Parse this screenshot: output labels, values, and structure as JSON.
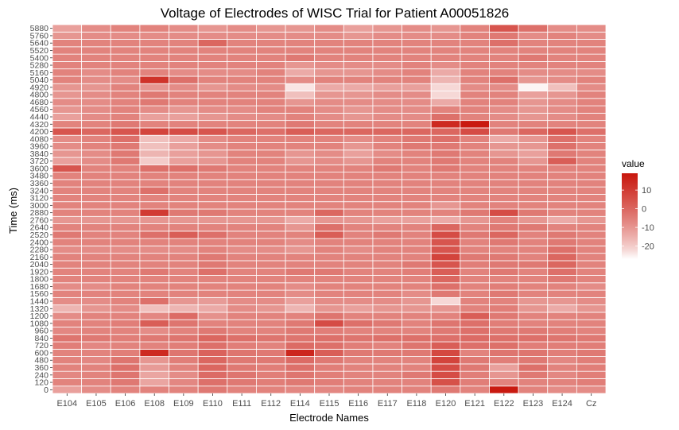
{
  "chart_data": {
    "type": "heatmap",
    "title": "Voltage of Electrodes of WISC Trial for Patient A00051826",
    "xlabel": "Electrode Names",
    "ylabel": "Time (ms)",
    "x_categories": [
      "E104",
      "E105",
      "E106",
      "E108",
      "E109",
      "E110",
      "E111",
      "E112",
      "E114",
      "E115",
      "E116",
      "E117",
      "E118",
      "E120",
      "E121",
      "E122",
      "E123",
      "E124",
      "Cz"
    ],
    "y_categories": [
      0,
      120,
      240,
      360,
      480,
      600,
      720,
      840,
      960,
      1080,
      1200,
      1320,
      1440,
      1560,
      1680,
      1800,
      1920,
      2040,
      2160,
      2280,
      2400,
      2520,
      2640,
      2760,
      2880,
      3000,
      3120,
      3240,
      3360,
      3480,
      3600,
      3720,
      3840,
      3960,
      4080,
      4200,
      4320,
      4440,
      4560,
      4680,
      4800,
      4920,
      5040,
      5160,
      5280,
      5400,
      5520,
      5640,
      5760,
      5880
    ],
    "value_range": [
      -27,
      19
    ],
    "legend": {
      "title": "value",
      "ticks": [
        "10",
        "0",
        "-10",
        "-20"
      ],
      "tick_values": [
        10,
        0,
        -10,
        -20
      ],
      "position": "right"
    },
    "colors": {
      "low": "#ffffff",
      "high": "#c8160c",
      "grid": "#ffffff"
    },
    "values": [
      [
        -12,
        -8,
        -6,
        -6,
        -6,
        -4,
        -6,
        -6,
        -7,
        -7,
        -6,
        -6,
        -6,
        -4,
        -6,
        18,
        -6,
        -8,
        -8
      ],
      [
        -6,
        -6,
        -4,
        -13,
        -7,
        -2,
        -4,
        -5,
        -4,
        -5,
        -6,
        -6,
        -6,
        5,
        -5,
        -6,
        -6,
        -6,
        -5
      ],
      [
        -7,
        -6,
        -3,
        -13,
        -8,
        -1,
        -3,
        -5,
        -3,
        -5,
        -6,
        -6,
        -4,
        6,
        -5,
        -10,
        -4,
        -7,
        -5
      ],
      [
        -6,
        -6,
        -2,
        -11,
        -6,
        0,
        -4,
        -5,
        -2,
        -5,
        -6,
        -6,
        -6,
        6,
        -4,
        -12,
        -2,
        -6,
        -5
      ],
      [
        -6,
        -7,
        -3,
        -10,
        -5,
        0,
        -4,
        -4,
        -1,
        -4,
        -6,
        -6,
        -6,
        8,
        -4,
        -5,
        -4,
        -7,
        -5
      ],
      [
        -6,
        -6,
        -5,
        14,
        -3,
        1,
        -3,
        -4,
        15,
        2,
        -4,
        -4,
        -4,
        7,
        -6,
        -3,
        -3,
        -5,
        -4
      ],
      [
        -5,
        -7,
        -6,
        -6,
        -5,
        -2,
        -5,
        -6,
        -1,
        -2,
        -5,
        -6,
        -3,
        2,
        -2,
        -2,
        -5,
        -5,
        -5
      ],
      [
        -3,
        -4,
        -5,
        -4,
        -3,
        0,
        -2,
        -3,
        -3,
        -2,
        -3,
        -2,
        -2,
        -2,
        -1,
        -2,
        -2,
        -3,
        -4
      ],
      [
        -7,
        -6,
        -6,
        -8,
        -6,
        -4,
        -6,
        -6,
        -4,
        -5,
        -6,
        -6,
        -6,
        -4,
        -2,
        -4,
        -4,
        -5,
        -6
      ],
      [
        -6,
        -6,
        -5,
        2,
        -3,
        -6,
        -6,
        -6,
        -4,
        6,
        -2,
        -4,
        -6,
        -3,
        -2,
        -5,
        -6,
        -6,
        -6
      ],
      [
        -8,
        -6,
        -6,
        -7,
        -1,
        -9,
        -6,
        -6,
        -6,
        -3,
        -6,
        -6,
        -6,
        -6,
        2,
        -4,
        -6,
        -6,
        -6
      ],
      [
        -16,
        -10,
        -8,
        -18,
        -16,
        -14,
        -8,
        -10,
        -16,
        -10,
        -12,
        -10,
        -10,
        -10,
        -6,
        -5,
        -10,
        -14,
        -10
      ],
      [
        -8,
        -8,
        -6,
        -2,
        -10,
        -11,
        -8,
        -8,
        -12,
        -8,
        -8,
        -8,
        -10,
        -22,
        -6,
        -6,
        -10,
        -10,
        -8
      ],
      [
        -6,
        -6,
        -6,
        -6,
        -6,
        -6,
        -6,
        -6,
        -8,
        -6,
        -6,
        -6,
        -8,
        -4,
        -6,
        -4,
        -6,
        -6,
        -6
      ],
      [
        -8,
        -8,
        -6,
        -6,
        -6,
        -6,
        -6,
        -6,
        -8,
        -6,
        -6,
        -6,
        -6,
        -2,
        -6,
        -5,
        -6,
        -6,
        -8
      ],
      [
        -6,
        -6,
        -6,
        -6,
        -6,
        -6,
        -6,
        -6,
        -6,
        -6,
        -6,
        -6,
        -6,
        0,
        -6,
        -6,
        -6,
        -4,
        -6
      ],
      [
        -6,
        -6,
        -6,
        -4,
        -6,
        -2,
        -6,
        -6,
        -4,
        -4,
        -6,
        -6,
        -5,
        2,
        -6,
        -4,
        -6,
        -2,
        -6
      ],
      [
        -6,
        -6,
        -6,
        -6,
        -6,
        -4,
        -6,
        -6,
        -6,
        -6,
        -6,
        -6,
        -4,
        4,
        -5,
        -4,
        -4,
        0,
        -6
      ],
      [
        -6,
        -6,
        -6,
        -6,
        -6,
        -4,
        -6,
        -6,
        -6,
        -6,
        -6,
        -6,
        -6,
        8,
        -4,
        -4,
        -6,
        0,
        -6
      ],
      [
        -8,
        -8,
        -8,
        -8,
        -8,
        -6,
        -8,
        -8,
        -10,
        -6,
        -8,
        -6,
        -6,
        4,
        -6,
        -6,
        -6,
        -2,
        -6
      ],
      [
        -6,
        -6,
        -6,
        -6,
        -6,
        -6,
        -6,
        -6,
        -8,
        -6,
        -6,
        -6,
        -6,
        4,
        -6,
        -4,
        -6,
        -4,
        -6
      ],
      [
        -4,
        -6,
        -6,
        -2,
        2,
        -2,
        -6,
        -6,
        -6,
        2,
        -6,
        -4,
        -6,
        6,
        -4,
        0,
        -6,
        -4,
        -6
      ],
      [
        -6,
        -6,
        -6,
        -6,
        -6,
        -6,
        -6,
        -6,
        -10,
        -2,
        -6,
        -6,
        -6,
        0,
        -6,
        -4,
        -4,
        -6,
        -6
      ],
      [
        -10,
        -10,
        -10,
        -10,
        -10,
        -10,
        -10,
        -10,
        -14,
        -10,
        -10,
        -12,
        -12,
        -14,
        -10,
        -6,
        -10,
        -14,
        -10
      ],
      [
        -6,
        -6,
        -6,
        10,
        -4,
        -4,
        -6,
        -6,
        -6,
        0,
        -6,
        -6,
        -6,
        -6,
        -4,
        6,
        -4,
        -6,
        -6
      ],
      [
        -6,
        -6,
        -6,
        -6,
        -6,
        -6,
        -6,
        -6,
        -6,
        -6,
        -6,
        -6,
        -6,
        -10,
        -6,
        -6,
        -6,
        -6,
        -6
      ],
      [
        -6,
        -6,
        -6,
        -6,
        -6,
        -6,
        -6,
        -6,
        -6,
        -6,
        -6,
        -6,
        -6,
        -6,
        -6,
        -6,
        -6,
        -6,
        -6
      ],
      [
        -6,
        -6,
        -6,
        -2,
        -6,
        -6,
        -6,
        -6,
        -6,
        -6,
        -6,
        -6,
        -6,
        -6,
        -6,
        -6,
        -6,
        -6,
        -6
      ],
      [
        -6,
        -6,
        -6,
        -6,
        -6,
        -6,
        -6,
        -6,
        -6,
        -6,
        -6,
        -6,
        -6,
        -6,
        -6,
        -6,
        -6,
        -6,
        -6
      ],
      [
        -6,
        -6,
        -6,
        -6,
        -6,
        -6,
        -6,
        -6,
        -6,
        -6,
        -6,
        -6,
        -6,
        -6,
        -6,
        -6,
        -6,
        -6,
        -6
      ],
      [
        4,
        -6,
        -6,
        -2,
        -2,
        -4,
        -6,
        -6,
        -6,
        -6,
        -6,
        -4,
        -6,
        -4,
        -6,
        -6,
        -6,
        -6,
        -6
      ],
      [
        -12,
        -8,
        -4,
        -20,
        -12,
        -10,
        -6,
        -6,
        -10,
        -8,
        -10,
        -6,
        -6,
        -4,
        -6,
        -6,
        -10,
        2,
        -6
      ],
      [
        -10,
        -8,
        -4,
        -16,
        -12,
        -10,
        -6,
        -6,
        -10,
        -8,
        -12,
        -8,
        -6,
        -4,
        -6,
        -10,
        -12,
        -4,
        -6
      ],
      [
        -8,
        -6,
        -4,
        -18,
        -12,
        -8,
        -6,
        -6,
        -6,
        -6,
        -10,
        -6,
        -4,
        -4,
        -6,
        -10,
        -10,
        -2,
        -6
      ],
      [
        -8,
        -6,
        -2,
        -18,
        -14,
        -8,
        -6,
        -6,
        -6,
        -6,
        -8,
        -6,
        -4,
        -2,
        -6,
        -14,
        -10,
        -2,
        -6
      ],
      [
        4,
        0,
        4,
        8,
        6,
        4,
        0,
        -2,
        2,
        0,
        0,
        0,
        0,
        0,
        6,
        -4,
        0,
        4,
        -2
      ],
      [
        -6,
        -6,
        -4,
        -6,
        -6,
        -6,
        -6,
        -6,
        -4,
        -6,
        -6,
        -6,
        -6,
        14,
        18,
        -6,
        -6,
        -6,
        -6
      ],
      [
        -12,
        -8,
        -6,
        -12,
        -12,
        -10,
        -8,
        -8,
        -6,
        -8,
        -10,
        -8,
        -8,
        -2,
        -6,
        -8,
        -10,
        -8,
        -6
      ],
      [
        -10,
        -8,
        -6,
        -8,
        -10,
        -8,
        -8,
        -6,
        -6,
        -8,
        -10,
        -8,
        -8,
        -6,
        -6,
        -8,
        -10,
        -8,
        -6
      ],
      [
        -8,
        -8,
        -6,
        -4,
        -6,
        -6,
        -6,
        -6,
        -10,
        -8,
        -8,
        -8,
        -8,
        -14,
        -6,
        -6,
        -10,
        -8,
        -6
      ],
      [
        -10,
        -8,
        -6,
        -4,
        -6,
        -6,
        -6,
        -6,
        -18,
        -10,
        -10,
        -8,
        -8,
        -22,
        -6,
        -6,
        -12,
        -10,
        -6
      ],
      [
        -10,
        -10,
        -6,
        -10,
        -8,
        -10,
        -8,
        -8,
        -24,
        -14,
        -14,
        -12,
        -12,
        -22,
        -8,
        -8,
        -26,
        -18,
        -8
      ],
      [
        -6,
        -8,
        -8,
        12,
        -2,
        -6,
        -6,
        -6,
        -8,
        -6,
        -6,
        -6,
        -6,
        -16,
        -6,
        -2,
        -10,
        -8,
        -6
      ],
      [
        -6,
        -8,
        -6,
        -6,
        -8,
        -8,
        -8,
        -6,
        -14,
        -10,
        -10,
        -8,
        -6,
        -14,
        -6,
        -6,
        -8,
        -8,
        -8
      ],
      [
        -6,
        -6,
        -6,
        -6,
        -6,
        -6,
        -6,
        -6,
        -10,
        -8,
        -8,
        -8,
        -6,
        -8,
        -6,
        -6,
        -6,
        -6,
        -6
      ],
      [
        -6,
        -6,
        -6,
        -6,
        -6,
        -6,
        -6,
        -6,
        -4,
        -6,
        -6,
        -6,
        -6,
        -6,
        -6,
        -6,
        -4,
        -6,
        -6
      ],
      [
        -6,
        -6,
        -6,
        -6,
        -6,
        -6,
        -6,
        -6,
        -6,
        -6,
        -6,
        -6,
        -6,
        -6,
        -6,
        -6,
        -6,
        -6,
        -6
      ],
      [
        -6,
        -6,
        -6,
        -6,
        -6,
        0,
        -6,
        -6,
        -6,
        -6,
        -6,
        -6,
        -6,
        -6,
        -6,
        -2,
        -6,
        -6,
        -6
      ],
      [
        -10,
        -8,
        -8,
        -8,
        -8,
        -8,
        -8,
        -8,
        -8,
        -8,
        -10,
        -8,
        -8,
        -8,
        -6,
        -4,
        -8,
        -6,
        -8
      ],
      [
        -12,
        -8,
        -6,
        -6,
        -8,
        -10,
        -8,
        -10,
        -10,
        -8,
        -12,
        -10,
        -8,
        -10,
        -6,
        4,
        -2,
        -8,
        -8
      ]
    ]
  }
}
